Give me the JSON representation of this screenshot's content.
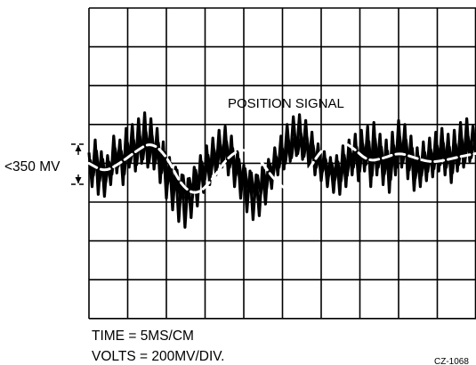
{
  "annotation": {
    "signal_label": "POSITION SIGNAL",
    "amplitude_label": "<350 MV"
  },
  "settings": {
    "time": "TIME = 5MS/CM",
    "volts": "VOLTS = 200MV/DIV."
  },
  "figure_id": "CZ-1068",
  "chart_data": {
    "type": "line",
    "title": "",
    "xlabel": "",
    "ylabel": "",
    "grid": true,
    "divisions": {
      "x": 10,
      "y": 8
    },
    "x_unit": "ms",
    "y_unit": "mV",
    "xlim": [
      0,
      50
    ],
    "ylim": [
      -800,
      800
    ],
    "series": [
      {
        "name": "POSITION SIGNAL",
        "style": "dashed",
        "color": "#ffffff",
        "points": [
          [
            0,
            0
          ],
          [
            2,
            -45
          ],
          [
            4,
            0
          ],
          [
            6,
            60
          ],
          [
            8,
            110
          ],
          [
            10,
            40
          ],
          [
            12,
            -120
          ],
          [
            14,
            -165
          ],
          [
            16,
            -80
          ],
          [
            18,
            35
          ],
          [
            20,
            80
          ],
          [
            22,
            25
          ],
          [
            24,
            -90
          ],
          [
            26,
            -150
          ],
          [
            28,
            -60
          ],
          [
            30,
            70
          ],
          [
            32,
            125
          ],
          [
            34,
            85
          ],
          [
            36,
            10
          ],
          [
            38,
            25
          ],
          [
            40,
            55
          ],
          [
            42,
            30
          ],
          [
            44,
            5
          ],
          [
            46,
            15
          ],
          [
            48,
            35
          ],
          [
            50,
            50
          ]
        ]
      },
      {
        "name": "",
        "style": "noisy",
        "color": "#000000",
        "points": [
          [
            0.0,
            55
          ],
          [
            0.4,
            -120
          ],
          [
            0.8,
            120
          ],
          [
            1.2,
            -160
          ],
          [
            1.6,
            60
          ],
          [
            2.0,
            -170
          ],
          [
            2.4,
            40
          ],
          [
            2.8,
            -110
          ],
          [
            3.2,
            140
          ],
          [
            3.6,
            -50
          ],
          [
            4.0,
            120
          ],
          [
            4.4,
            -110
          ],
          [
            4.8,
            180
          ],
          [
            5.2,
            -20
          ],
          [
            5.6,
            200
          ],
          [
            6.0,
            -40
          ],
          [
            6.4,
            230
          ],
          [
            6.8,
            0
          ],
          [
            7.2,
            260
          ],
          [
            7.6,
            -20
          ],
          [
            8.0,
            230
          ],
          [
            8.4,
            -30
          ],
          [
            8.8,
            180
          ],
          [
            9.2,
            -100
          ],
          [
            9.6,
            110
          ],
          [
            10.0,
            -180
          ],
          [
            10.4,
            30
          ],
          [
            10.8,
            -240
          ],
          [
            11.2,
            -20
          ],
          [
            11.6,
            -300
          ],
          [
            12.0,
            -60
          ],
          [
            12.4,
            -330
          ],
          [
            12.8,
            -80
          ],
          [
            13.2,
            -280
          ],
          [
            13.6,
            -20
          ],
          [
            14.0,
            -220
          ],
          [
            14.4,
            40
          ],
          [
            14.8,
            -150
          ],
          [
            15.2,
            90
          ],
          [
            15.6,
            -110
          ],
          [
            16.0,
            130
          ],
          [
            16.4,
            -60
          ],
          [
            16.8,
            170
          ],
          [
            17.2,
            -20
          ],
          [
            17.6,
            190
          ],
          [
            18.0,
            -60
          ],
          [
            18.4,
            140
          ],
          [
            18.8,
            -120
          ],
          [
            19.2,
            60
          ],
          [
            19.6,
            -180
          ],
          [
            20.0,
            -10
          ],
          [
            20.4,
            -250
          ],
          [
            20.8,
            -40
          ],
          [
            21.2,
            -290
          ],
          [
            21.6,
            -60
          ],
          [
            22.0,
            -270
          ],
          [
            22.4,
            -20
          ],
          [
            22.8,
            -210
          ],
          [
            23.2,
            20
          ],
          [
            23.6,
            -130
          ],
          [
            24.0,
            80
          ],
          [
            24.4,
            -60
          ],
          [
            24.8,
            140
          ],
          [
            25.2,
            -30
          ],
          [
            25.6,
            200
          ],
          [
            26.0,
            10
          ],
          [
            26.4,
            240
          ],
          [
            26.8,
            40
          ],
          [
            27.2,
            250
          ],
          [
            27.6,
            20
          ],
          [
            28.0,
            220
          ],
          [
            28.4,
            -20
          ],
          [
            28.8,
            160
          ],
          [
            29.2,
            -60
          ],
          [
            29.6,
            100
          ],
          [
            30.0,
            -90
          ],
          [
            30.4,
            60
          ],
          [
            30.8,
            -120
          ],
          [
            31.2,
            30
          ],
          [
            31.6,
            -150
          ],
          [
            32.0,
            40
          ],
          [
            32.4,
            -160
          ],
          [
            32.8,
            90
          ],
          [
            33.2,
            -120
          ],
          [
            33.6,
            120
          ],
          [
            34.0,
            -60
          ],
          [
            34.4,
            150
          ],
          [
            34.8,
            -90
          ],
          [
            35.2,
            170
          ],
          [
            35.6,
            -40
          ],
          [
            36.0,
            190
          ],
          [
            36.4,
            -120
          ],
          [
            36.8,
            210
          ],
          [
            37.2,
            -60
          ],
          [
            37.6,
            150
          ],
          [
            38.0,
            -110
          ],
          [
            38.4,
            120
          ],
          [
            38.8,
            -150
          ],
          [
            39.2,
            160
          ],
          [
            39.6,
            -60
          ],
          [
            40.0,
            220
          ],
          [
            40.4,
            -20
          ],
          [
            40.8,
            200
          ],
          [
            41.2,
            -80
          ],
          [
            41.6,
            140
          ],
          [
            42.0,
            -140
          ],
          [
            42.4,
            80
          ],
          [
            42.8,
            -120
          ],
          [
            43.2,
            110
          ],
          [
            43.6,
            -90
          ],
          [
            44.0,
            130
          ],
          [
            44.4,
            -70
          ],
          [
            44.8,
            160
          ],
          [
            45.2,
            -40
          ],
          [
            45.6,
            180
          ],
          [
            46.0,
            -60
          ],
          [
            46.4,
            150
          ],
          [
            46.8,
            -100
          ],
          [
            47.2,
            170
          ],
          [
            47.6,
            -40
          ],
          [
            48.0,
            210
          ],
          [
            48.4,
            -20
          ],
          [
            48.8,
            230
          ],
          [
            49.2,
            10
          ],
          [
            49.6,
            190
          ],
          [
            50.0,
            40
          ]
        ]
      }
    ]
  }
}
